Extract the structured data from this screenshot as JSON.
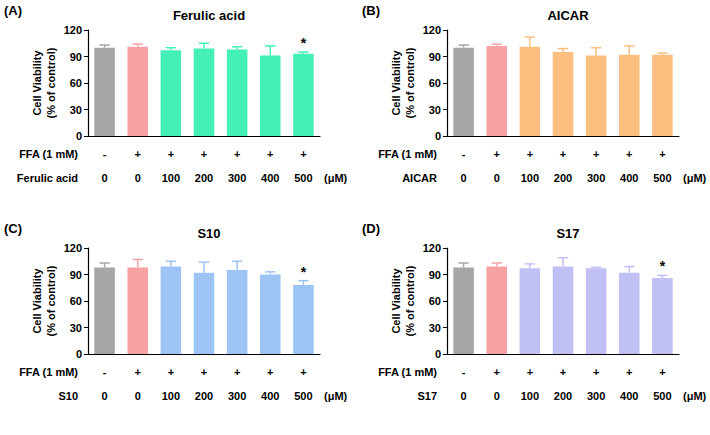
{
  "chart_data": [
    {
      "type": "bar",
      "panel": "(A)",
      "title": "Ferulic acid",
      "y_label": "Cell Viability\n(% of control)",
      "categories": [
        "0",
        "0",
        "100",
        "200",
        "300",
        "400",
        "500"
      ],
      "ffa": [
        "-",
        "+",
        "+",
        "+",
        "+",
        "+",
        "+"
      ],
      "ffa_label": "FFA (1 mM)",
      "x_label": "Ferulic acid",
      "x_unit": "(μM)",
      "values": [
        100,
        101,
        97,
        99,
        98,
        91,
        93
      ],
      "errors": [
        3,
        3,
        3,
        6,
        3,
        11,
        2
      ],
      "significance": [
        null,
        null,
        null,
        null,
        null,
        null,
        "*"
      ],
      "colors": [
        "#a6a6a6",
        "#f7a1a3",
        "#45f0b8",
        "#45f0b8",
        "#45f0b8",
        "#45f0b8",
        "#45f0b8"
      ],
      "ylim": [
        0,
        120
      ],
      "yticks": [
        0,
        30,
        60,
        90,
        120
      ]
    },
    {
      "type": "bar",
      "panel": "(B)",
      "title": "AICAR",
      "y_label": "Cell Viability\n(% of control)",
      "categories": [
        "0",
        "0",
        "100",
        "200",
        "300",
        "400",
        "500"
      ],
      "ffa": [
        "-",
        "+",
        "+",
        "+",
        "+",
        "+",
        "+"
      ],
      "ffa_label": "FFA (1 mM)",
      "x_label": "AICAR",
      "x_unit": "(μM)",
      "values": [
        100,
        102,
        101,
        95,
        91,
        92,
        92
      ],
      "errors": [
        3,
        2,
        11,
        4,
        9,
        10,
        2
      ],
      "significance": [
        null,
        null,
        null,
        null,
        null,
        null,
        null
      ],
      "colors": [
        "#a6a6a6",
        "#f7a1a3",
        "#fdbf80",
        "#fdbf80",
        "#fdbf80",
        "#fdbf80",
        "#fdbf80"
      ],
      "ylim": [
        0,
        120
      ],
      "yticks": [
        0,
        30,
        60,
        90,
        120
      ]
    },
    {
      "type": "bar",
      "panel": "(C)",
      "title": "S10",
      "y_label": "Cell Viability\n(% of control)",
      "categories": [
        "0",
        "0",
        "100",
        "200",
        "300",
        "400",
        "500"
      ],
      "ffa": [
        "-",
        "+",
        "+",
        "+",
        "+",
        "+",
        "+"
      ],
      "ffa_label": "FFA (1 mM)",
      "x_label": "S10",
      "x_unit": "(μM)",
      "values": [
        98,
        98,
        99,
        92,
        95,
        90,
        78
      ],
      "errors": [
        5,
        9,
        6,
        12,
        10,
        3,
        5
      ],
      "significance": [
        null,
        null,
        null,
        null,
        null,
        null,
        "*"
      ],
      "colors": [
        "#a6a6a6",
        "#f7a1a3",
        "#9ec4f6",
        "#9ec4f6",
        "#9ec4f6",
        "#9ec4f6",
        "#9ec4f6"
      ],
      "ylim": [
        0,
        120
      ],
      "yticks": [
        0,
        30,
        60,
        90,
        120
      ]
    },
    {
      "type": "bar",
      "panel": "(D)",
      "title": "S17",
      "y_label": "Cell Viability\n(% of control)",
      "categories": [
        "0",
        "0",
        "100",
        "200",
        "300",
        "400",
        "500"
      ],
      "ffa": [
        "-",
        "+",
        "+",
        "+",
        "+",
        "+",
        "+"
      ],
      "ffa_label": "FFA (1 mM)",
      "x_label": "S17",
      "x_unit": "(μM)",
      "values": [
        98,
        99,
        97,
        99,
        97,
        92,
        86
      ],
      "errors": [
        5,
        4,
        5,
        10,
        1,
        7,
        3
      ],
      "significance": [
        null,
        null,
        null,
        null,
        null,
        null,
        "*"
      ],
      "colors": [
        "#a6a6a6",
        "#f7a1a3",
        "#c0c0f4",
        "#c0c0f4",
        "#c0c0f4",
        "#c0c0f4",
        "#c0c0f4"
      ],
      "ylim": [
        0,
        120
      ],
      "yticks": [
        0,
        30,
        60,
        90,
        120
      ]
    }
  ]
}
